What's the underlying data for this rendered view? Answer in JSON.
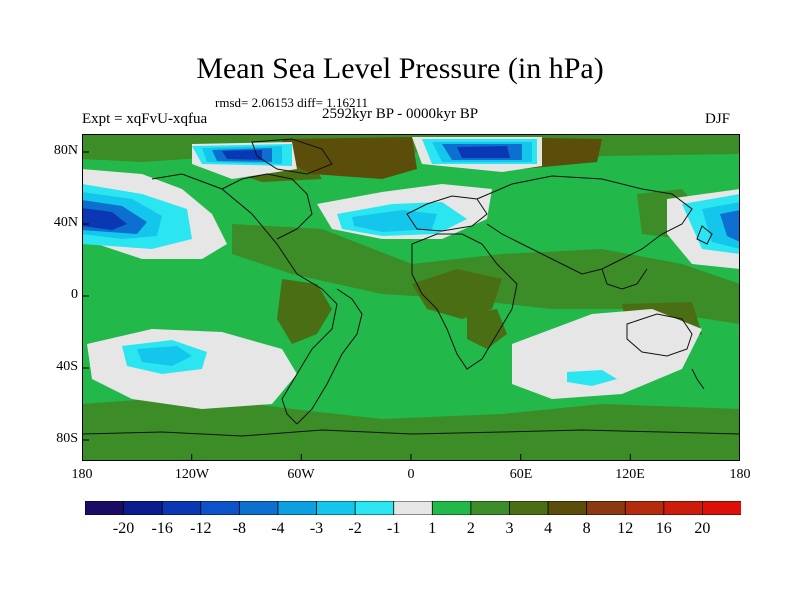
{
  "title": "Mean Sea Level Pressure (in hPa)",
  "stats": "rmsd= 2.06153 diff= 1.16211",
  "period": "2592kyr BP - 0000kyr BP",
  "experiment": "Expt = xqFvU-xqfua",
  "season": "DJF",
  "x_ticks": [
    "180",
    "120W",
    "60W",
    "0",
    "60E",
    "120E",
    "180"
  ],
  "y_ticks": [
    "80N",
    "40N",
    "0",
    "40S",
    "80S"
  ],
  "colorbar": {
    "labels": [
      "-20",
      "-16",
      "-12",
      "-8",
      "-4",
      "-3",
      "-2",
      "-1",
      "1",
      "2",
      "3",
      "4",
      "8",
      "12",
      "16",
      "20"
    ],
    "colors": [
      "#1a0c64",
      "#0a1c8c",
      "#0a38b4",
      "#0c52c8",
      "#0d6fd0",
      "#0d9fe0",
      "#14c6ec",
      "#2be6f0",
      "#e6e6e6",
      "#22b84a",
      "#3c8c28",
      "#4a6e14",
      "#5a4e0a",
      "#8c3810",
      "#b42c0e",
      "#cc1c0a",
      "#dc1008"
    ]
  },
  "palette": {
    "neutral": "#e6e6e6",
    "green": "#22b84a",
    "dark_green": "#3c8c28",
    "olive": "#4a6e14",
    "brown": "#5a4e0a",
    "light_blue": "#2be6f0",
    "cyan": "#14c6ec",
    "blue": "#0d9fe0",
    "deep_blue": "#0c52c8",
    "navy": "#0a1c8c",
    "coast": "#111111"
  }
}
